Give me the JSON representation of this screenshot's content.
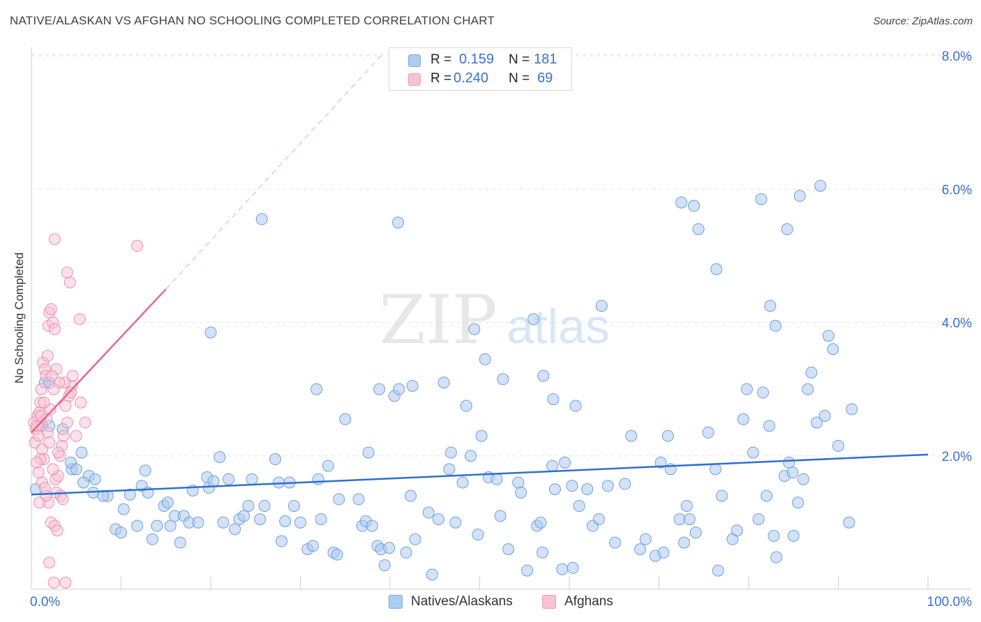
{
  "title": "NATIVE/ALASKAN VS AFGHAN NO SCHOOLING COMPLETED CORRELATION CHART",
  "source": "Source: ZipAtlas.com",
  "watermark": {
    "zip": "ZIP",
    "atlas": "atlas"
  },
  "legend_top": {
    "rows": [
      {
        "swatch": "blue",
        "r_label": "R =",
        "r_value": "0.159",
        "n_label": "N =",
        "n_value": "181"
      },
      {
        "swatch": "pink",
        "r_label": "R =",
        "r_value": "0.240",
        "n_label": "N =",
        "n_value": "69"
      }
    ]
  },
  "legend_bottom": {
    "natives": "Natives/Alaskans",
    "afghans": "Afghans"
  },
  "colors": {
    "blue_fill": "#aecbf0",
    "blue_stroke": "#6e9fdc",
    "blue_line": "#2f6fcf",
    "pink_fill": "#f8c3d3",
    "pink_stroke": "#ec8fae",
    "pink_line": "#e8658f",
    "grid": "#e3e3e3",
    "axis_label": "#3a6fd0"
  },
  "chart_data": {
    "type": "scatter",
    "title": "NATIVE/ALASKAN VS AFGHAN NO SCHOOLING COMPLETED CORRELATION CHART",
    "xlabel": "",
    "ylabel": "No Schooling Completed",
    "xlim": [
      0,
      100
    ],
    "ylim": [
      0,
      8.0
    ],
    "x_tick_labels": [
      "0.0%",
      "100.0%"
    ],
    "y_ticks": [
      2,
      4,
      6,
      8
    ],
    "y_tick_labels": [
      "2.0%",
      "4.0%",
      "6.0%",
      "8.0%"
    ],
    "grid": true,
    "series": [
      {
        "name": "Natives/Alaskans",
        "color": "blue",
        "r": 0.159,
        "n": 181,
        "trend": {
          "x0": 0,
          "y0": 1.42,
          "x1": 100,
          "y1": 2.02
        },
        "points": [
          [
            0.5,
            1.5
          ],
          [
            1.5,
            3.1
          ],
          [
            2.0,
            3.1
          ],
          [
            1.2,
            2.45
          ],
          [
            3.5,
            2.4
          ],
          [
            2.0,
            2.45
          ],
          [
            5.6,
            2.05
          ],
          [
            4.5,
            1.8
          ],
          [
            4.4,
            1.9
          ],
          [
            5.0,
            1.8
          ],
          [
            6.4,
            1.7
          ],
          [
            5.8,
            1.6
          ],
          [
            7.1,
            1.65
          ],
          [
            6.9,
            1.45
          ],
          [
            8.5,
            1.4
          ],
          [
            8.0,
            1.4
          ],
          [
            9.4,
            0.9
          ],
          [
            10.0,
            0.85
          ],
          [
            10.3,
            1.2
          ],
          [
            11.0,
            1.42
          ],
          [
            11.8,
            0.95
          ],
          [
            12.3,
            1.55
          ],
          [
            12.7,
            1.78
          ],
          [
            13.0,
            1.45
          ],
          [
            13.5,
            0.75
          ],
          [
            14.0,
            0.95
          ],
          [
            14.8,
            1.25
          ],
          [
            15.2,
            1.3
          ],
          [
            15.5,
            0.95
          ],
          [
            16.0,
            1.1
          ],
          [
            16.6,
            0.7
          ],
          [
            17.0,
            1.1
          ],
          [
            17.6,
            1.0
          ],
          [
            18.0,
            1.48
          ],
          [
            18.6,
            1.0
          ],
          [
            19.6,
            1.68
          ],
          [
            19.8,
            1.52
          ],
          [
            20.3,
            1.62
          ],
          [
            21.0,
            1.98
          ],
          [
            21.4,
            1.0
          ],
          [
            22.0,
            1.65
          ],
          [
            22.7,
            0.9
          ],
          [
            23.2,
            1.05
          ],
          [
            23.7,
            1.1
          ],
          [
            24.2,
            1.25
          ],
          [
            24.6,
            1.65
          ],
          [
            25.5,
            1.05
          ],
          [
            26.0,
            1.25
          ],
          [
            27.6,
            1.6
          ],
          [
            27.2,
            1.95
          ],
          [
            27.9,
            0.72
          ],
          [
            28.3,
            1.02
          ],
          [
            28.8,
            1.6
          ],
          [
            29.3,
            1.25
          ],
          [
            30.0,
            1.0
          ],
          [
            30.8,
            0.6
          ],
          [
            31.4,
            0.65
          ],
          [
            32.0,
            1.65
          ],
          [
            32.3,
            1.05
          ],
          [
            33.1,
            1.85
          ],
          [
            33.7,
            0.55
          ],
          [
            34.3,
            1.35
          ],
          [
            34.1,
            0.52
          ],
          [
            36.5,
            1.35
          ],
          [
            36.9,
            0.95
          ],
          [
            37.3,
            1.02
          ],
          [
            38.0,
            0.95
          ],
          [
            38.6,
            0.65
          ],
          [
            39.0,
            0.6
          ],
          [
            39.4,
            0.36
          ],
          [
            39.9,
            0.62
          ],
          [
            40.5,
            2.9
          ],
          [
            41.0,
            3.0
          ],
          [
            41.8,
            0.55
          ],
          [
            42.3,
            1.4
          ],
          [
            42.8,
            0.75
          ],
          [
            42.5,
            3.05
          ],
          [
            44.3,
            1.15
          ],
          [
            44.7,
            0.22
          ],
          [
            45.4,
            1.05
          ],
          [
            46.0,
            3.1
          ],
          [
            46.6,
            1.8
          ],
          [
            46.8,
            2.05
          ],
          [
            47.3,
            1.0
          ],
          [
            48.1,
            1.6
          ],
          [
            48.5,
            2.75
          ],
          [
            49.0,
            2.0
          ],
          [
            49.8,
            0.82
          ],
          [
            50.6,
            3.45
          ],
          [
            51.0,
            1.68
          ],
          [
            50.2,
            2.3
          ],
          [
            51.9,
            1.65
          ],
          [
            52.3,
            1.1
          ],
          [
            53.2,
            0.6
          ],
          [
            54.3,
            1.6
          ],
          [
            54.6,
            1.45
          ],
          [
            55.3,
            0.28
          ],
          [
            56.4,
            0.95
          ],
          [
            56.8,
            1.0
          ],
          [
            57.0,
            0.55
          ],
          [
            58.1,
            1.85
          ],
          [
            58.4,
            1.5
          ],
          [
            59.5,
            1.9
          ],
          [
            59.2,
            0.3
          ],
          [
            60.3,
            1.55
          ],
          [
            60.4,
            0.32
          ],
          [
            61.1,
            1.25
          ],
          [
            62.0,
            1.5
          ],
          [
            62.6,
            0.95
          ],
          [
            63.3,
            1.05
          ],
          [
            64.3,
            1.55
          ],
          [
            65.1,
            0.7
          ],
          [
            66.2,
            1.58
          ],
          [
            66.9,
            2.3
          ],
          [
            67.9,
            0.6
          ],
          [
            68.5,
            0.75
          ],
          [
            69.6,
            0.5
          ],
          [
            70.2,
            1.9
          ],
          [
            70.5,
            0.55
          ],
          [
            71.3,
            1.8
          ],
          [
            72.3,
            1.05
          ],
          [
            72.8,
            0.7
          ],
          [
            73.1,
            1.25
          ],
          [
            73.4,
            1.05
          ],
          [
            74.1,
            0.85
          ],
          [
            75.5,
            2.35
          ],
          [
            76.3,
            1.8
          ],
          [
            76.6,
            0.28
          ],
          [
            77.0,
            1.4
          ],
          [
            78.2,
            0.75
          ],
          [
            78.7,
            0.88
          ],
          [
            79.4,
            2.55
          ],
          [
            79.8,
            3.0
          ],
          [
            80.5,
            2.05
          ],
          [
            81.1,
            1.05
          ],
          [
            81.6,
            2.95
          ],
          [
            82.0,
            1.4
          ],
          [
            82.3,
            2.45
          ],
          [
            82.8,
            0.8
          ],
          [
            83.1,
            0.48
          ],
          [
            84.0,
            1.7
          ],
          [
            84.5,
            1.9
          ],
          [
            84.9,
            1.75
          ],
          [
            85.0,
            0.8
          ],
          [
            85.5,
            1.3
          ],
          [
            86.1,
            1.65
          ],
          [
            87.0,
            3.25
          ],
          [
            87.6,
            2.5
          ],
          [
            88.5,
            2.6
          ],
          [
            88.9,
            3.8
          ],
          [
            89.4,
            3.6
          ],
          [
            90.0,
            2.15
          ],
          [
            91.2,
            1.0
          ],
          [
            91.5,
            2.7
          ],
          [
            63.6,
            4.25
          ],
          [
            58.2,
            2.85
          ],
          [
            56.0,
            4.05
          ],
          [
            57.1,
            3.2
          ],
          [
            60.7,
            2.75
          ],
          [
            71.0,
            2.3
          ],
          [
            72.5,
            5.8
          ],
          [
            86.6,
            3.0
          ],
          [
            88.0,
            6.05
          ],
          [
            85.7,
            5.9
          ],
          [
            84.3,
            5.4
          ],
          [
            83.0,
            3.95
          ],
          [
            82.4,
            4.25
          ],
          [
            81.4,
            5.85
          ],
          [
            76.4,
            4.8
          ],
          [
            74.4,
            5.4
          ],
          [
            73.9,
            5.75
          ],
          [
            25.7,
            5.55
          ],
          [
            40.9,
            5.5
          ],
          [
            49.4,
            3.9
          ],
          [
            52.6,
            3.15
          ],
          [
            20.0,
            3.85
          ],
          [
            31.8,
            3.0
          ],
          [
            35.0,
            2.55
          ],
          [
            38.8,
            3.0
          ],
          [
            37.6,
            2.05
          ]
        ]
      },
      {
        "name": "Afghans",
        "color": "pink",
        "r": 0.24,
        "n": 69,
        "trend": {
          "x0": 0,
          "y0": 2.35,
          "x1": 15,
          "y1": 4.5
        },
        "trend_dashed_to": {
          "x": 39,
          "y": 8.0
        },
        "points": [
          [
            0.3,
            2.5
          ],
          [
            0.5,
            2.4
          ],
          [
            0.4,
            2.2
          ],
          [
            0.6,
            2.45
          ],
          [
            0.7,
            2.6
          ],
          [
            0.8,
            2.3
          ],
          [
            0.9,
            2.65
          ],
          [
            1.0,
            2.8
          ],
          [
            1.1,
            3.0
          ],
          [
            1.3,
            3.4
          ],
          [
            1.5,
            3.3
          ],
          [
            1.6,
            3.2
          ],
          [
            1.8,
            3.5
          ],
          [
            1.9,
            3.95
          ],
          [
            2.0,
            4.15
          ],
          [
            2.2,
            4.2
          ],
          [
            2.4,
            4.0
          ],
          [
            2.6,
            3.9
          ],
          [
            1.2,
            2.1
          ],
          [
            1.4,
            1.95
          ],
          [
            1.0,
            1.95
          ],
          [
            0.6,
            1.9
          ],
          [
            0.8,
            1.75
          ],
          [
            1.2,
            1.6
          ],
          [
            1.5,
            1.52
          ],
          [
            1.9,
            1.3
          ],
          [
            2.2,
            1.0
          ],
          [
            2.6,
            0.95
          ],
          [
            2.9,
            0.88
          ],
          [
            2.0,
            0.4
          ],
          [
            2.5,
            0.1
          ],
          [
            3.8,
            0.1
          ],
          [
            2.8,
            1.45
          ],
          [
            3.3,
            1.4
          ],
          [
            3.5,
            1.35
          ],
          [
            2.7,
            1.65
          ],
          [
            3.0,
            1.7
          ],
          [
            3.2,
            2.0
          ],
          [
            3.4,
            2.15
          ],
          [
            3.6,
            2.3
          ],
          [
            3.8,
            2.75
          ],
          [
            4.0,
            2.5
          ],
          [
            4.2,
            2.9
          ],
          [
            4.5,
            3.05
          ],
          [
            4.6,
            3.2
          ],
          [
            3.7,
            3.1
          ],
          [
            3.1,
            3.1
          ],
          [
            2.8,
            3.3
          ],
          [
            2.5,
            3.0
          ],
          [
            2.3,
            3.2
          ],
          [
            2.1,
            2.7
          ],
          [
            1.7,
            2.55
          ],
          [
            1.4,
            2.8
          ],
          [
            1.1,
            2.6
          ],
          [
            1.8,
            2.35
          ],
          [
            2.0,
            2.2
          ],
          [
            5.0,
            2.3
          ],
          [
            5.5,
            2.8
          ],
          [
            6.0,
            2.5
          ],
          [
            5.4,
            4.05
          ],
          [
            4.0,
            4.75
          ],
          [
            4.3,
            4.6
          ],
          [
            2.6,
            5.25
          ],
          [
            11.8,
            5.15
          ],
          [
            4.4,
            2.95
          ],
          [
            3.0,
            2.05
          ],
          [
            2.4,
            1.8
          ],
          [
            1.6,
            1.4
          ],
          [
            0.9,
            1.3
          ]
        ]
      }
    ]
  }
}
